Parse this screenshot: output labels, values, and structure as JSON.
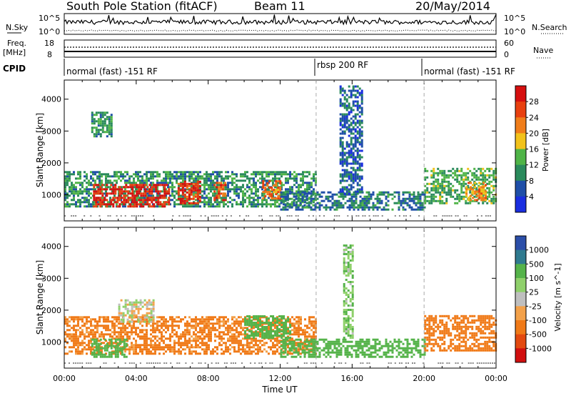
{
  "header": {
    "station": "South Pole Station (fitACF)",
    "beam": "Beam 11",
    "date": "20/May/2014"
  },
  "noise_panel": {
    "left_label": "N.Sky",
    "right_label": "N.Search",
    "tick_high": "10^5",
    "tick_low": "10^0"
  },
  "freq_panel": {
    "left_label_1": "Freq.",
    "left_label_2": "[MHz]",
    "right_label": "Nave",
    "left_ticks": [
      "18",
      "8"
    ],
    "right_ticks": [
      "60",
      "0"
    ]
  },
  "cpid": {
    "label": "CPID",
    "segments": [
      {
        "name": "normal (fast) -151 RF",
        "start_hour": 0,
        "end_hour": 14
      },
      {
        "name": "rbsp 200 RF",
        "start_hour": 14,
        "end_hour": 20
      },
      {
        "name": "normal (fast) -151 RF",
        "start_hour": 20,
        "end_hour": 24
      }
    ]
  },
  "colors": {
    "power_scale": [
      "#1a2ee0",
      "#1f4fa8",
      "#2a8a5c",
      "#4fb447",
      "#f2c21b",
      "#f07d1a",
      "#e8400f",
      "#d60f0f"
    ],
    "velocity_scale": [
      "#2b4ea8",
      "#2f7a8f",
      "#55b34a",
      "#8fd06b",
      "#bfbfbf",
      "#f3a14a",
      "#f07a18",
      "#e34a10",
      "#d10f0f"
    ]
  },
  "chart_data": [
    {
      "type": "heatmap",
      "title": "",
      "xlabel": "Time UT",
      "ylabel": "Slant Range [km]",
      "x_ticks": [
        "00:00",
        "04:00",
        "08:00",
        "12:00",
        "16:00",
        "20:00",
        "00:00"
      ],
      "xlim_hours": [
        0,
        24
      ],
      "y_ticks": [
        1000,
        2000,
        3000,
        4000
      ],
      "ylim": [
        180,
        4600
      ],
      "colorbar": {
        "label": "Power [dB]",
        "ticks": [
          "4",
          "8",
          "12",
          "16",
          "20",
          "24",
          "28"
        ],
        "range": [
          0,
          30
        ]
      },
      "regions": [
        {
          "t0": 0.0,
          "t1": 14.0,
          "r0": 600,
          "r1": 1700,
          "value": 10
        },
        {
          "t0": 1.6,
          "t1": 5.8,
          "r0": 600,
          "r1": 1300,
          "value": 27
        },
        {
          "t0": 6.3,
          "t1": 7.6,
          "r0": 700,
          "r1": 1400,
          "value": 26
        },
        {
          "t0": 8.3,
          "t1": 9.0,
          "r0": 800,
          "r1": 1400,
          "value": 24
        },
        {
          "t0": 11.0,
          "t1": 12.0,
          "r0": 850,
          "r1": 1400,
          "value": 22
        },
        {
          "t0": 12.0,
          "t1": 20.0,
          "r0": 500,
          "r1": 1100,
          "value": 8
        },
        {
          "t0": 20.0,
          "t1": 24.0,
          "r0": 700,
          "r1": 1800,
          "value": 12
        },
        {
          "t0": 22.3,
          "t1": 23.4,
          "r0": 800,
          "r1": 1400,
          "value": 20
        },
        {
          "t0": 1.5,
          "t1": 2.6,
          "r0": 2800,
          "r1": 3600,
          "value": 10
        },
        {
          "t0": 15.3,
          "t1": 16.6,
          "r0": 1000,
          "r1": 4400,
          "value": 6
        }
      ]
    },
    {
      "type": "heatmap",
      "title": "",
      "xlabel": "Time UT",
      "ylabel": "Slant Range [km]",
      "x_ticks": [
        "00:00",
        "04:00",
        "08:00",
        "12:00",
        "16:00",
        "20:00",
        "00:00"
      ],
      "xlim_hours": [
        0,
        24
      ],
      "y_ticks": [
        1000,
        2000,
        3000,
        4000
      ],
      "ylim": [
        180,
        4600
      ],
      "colorbar": {
        "label": "Velocity [m s^-1]",
        "ticks": [
          "1000",
          "500",
          "100",
          "25",
          "-25",
          "-100",
          "-500",
          "-1000"
        ]
      },
      "regions": [
        {
          "t0": 0.0,
          "t1": 14.0,
          "r0": 600,
          "r1": 1750,
          "value": -150
        },
        {
          "t0": 1.5,
          "t1": 3.5,
          "r0": 500,
          "r1": 1100,
          "value": 200
        },
        {
          "t0": 3.0,
          "t1": 5.0,
          "r0": 1600,
          "r1": 2300,
          "value": 0
        },
        {
          "t0": 10.0,
          "t1": 12.5,
          "r0": 1100,
          "r1": 1800,
          "value": 400
        },
        {
          "t0": 12.0,
          "t1": 20.0,
          "r0": 500,
          "r1": 1100,
          "value": 300
        },
        {
          "t0": 20.0,
          "t1": 24.0,
          "r0": 700,
          "r1": 1800,
          "value": -200
        },
        {
          "t0": 15.5,
          "t1": 16.0,
          "r0": 1100,
          "r1": 4000,
          "value": 80
        }
      ]
    }
  ]
}
